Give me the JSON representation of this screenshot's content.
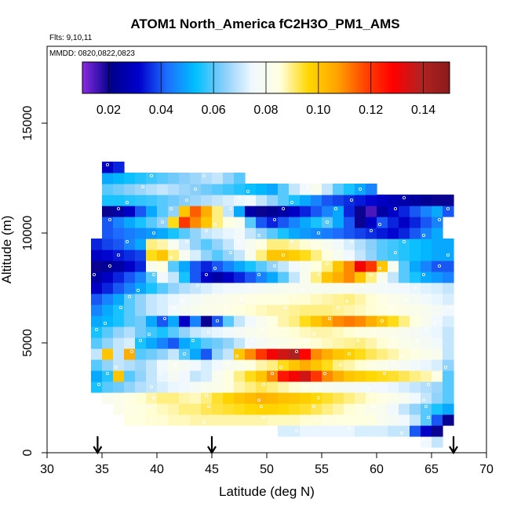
{
  "chart_data": {
    "type": "heatmap",
    "title": "ATOM1 North_America fC2H3O_PM1_AMS",
    "flights_label": "Flts: 9,10,11",
    "dates_label": "MMDD: 0820,0822,0823",
    "xlabel": "Latitude (deg N)",
    "ylabel": "Altitude (m)",
    "xlim": [
      30,
      70
    ],
    "ylim": [
      0,
      18500
    ],
    "x_ticks": [
      30,
      35,
      40,
      45,
      50,
      55,
      60,
      65,
      70
    ],
    "y_ticks": [
      0,
      5000,
      10000,
      15000
    ],
    "colorbar": {
      "min": 0.01,
      "max": 0.15,
      "ticks": [
        0.02,
        0.04,
        0.06,
        0.08,
        0.1,
        0.12,
        0.14
      ],
      "tick_labels": [
        "0.02",
        "0.04",
        "0.06",
        "0.08",
        "0.10",
        "0.12",
        "0.14"
      ],
      "colors": [
        "#8a2be2",
        "#00008b",
        "#0000cd",
        "#1e6fff",
        "#00bfff",
        "#87cefa",
        "#f0f8ff",
        "#ffffe0",
        "#ffd700",
        "#ffa500",
        "#ff4500",
        "#ff0000",
        "#b22222",
        "#8b1a1a"
      ]
    },
    "arrows_latitude": [
      34.6,
      45.0,
      67.0
    ],
    "cell_width_deg": 1.0,
    "cell_height_m": 500,
    "rows": [
      {
        "alt": 500,
        "lat_min": 64,
        "lat_max": 66,
        "values": [
          0.075,
          0.07
        ]
      },
      {
        "alt": 1000,
        "lat_min": 51,
        "lat_max": 66,
        "values": [
          0.072,
          0.072,
          0.074,
          0.074,
          0.074,
          0.074,
          0.074,
          0.072,
          0.072,
          0.072,
          0.07,
          0.07,
          0.04,
          0.03,
          0.02
        ]
      },
      {
        "alt": 1500,
        "lat_min": 37,
        "lat_max": 66,
        "values": [
          0.085,
          0.085,
          0.086,
          0.086,
          0.087,
          0.087,
          0.088,
          0.088,
          0.088,
          0.088,
          0.088,
          0.088,
          0.088,
          0.087,
          0.087,
          0.087,
          0.086,
          0.086,
          0.085,
          0.085,
          0.085,
          0.085,
          0.085,
          0.08,
          0.078,
          0.075,
          0.07,
          0.06,
          0.04,
          0.02
        ]
      },
      {
        "alt": 2000,
        "lat_min": 36,
        "lat_max": 67,
        "values": [
          0.082,
          0.084,
          0.085,
          0.086,
          0.087,
          0.088,
          0.09,
          0.09,
          0.092,
          0.093,
          0.094,
          0.095,
          0.096,
          0.097,
          0.097,
          0.096,
          0.095,
          0.094,
          0.092,
          0.09,
          0.088,
          0.086,
          0.085,
          0.082,
          0.08,
          0.075,
          0.07,
          0.065,
          0.06,
          0.055,
          0.05
        ]
      },
      {
        "alt": 2500,
        "lat_min": 35,
        "lat_max": 67,
        "values": [
          0.08,
          0.082,
          0.084,
          0.086,
          0.088,
          0.09,
          0.09,
          0.088,
          0.087,
          0.09,
          0.094,
          0.097,
          0.1,
          0.102,
          0.104,
          0.103,
          0.101,
          0.1,
          0.098,
          0.096,
          0.094,
          0.092,
          0.09,
          0.088,
          0.086,
          0.084,
          0.082,
          0.08,
          0.075,
          0.07,
          0.065,
          0.06
        ]
      },
      {
        "alt": 3000,
        "lat_min": 34,
        "lat_max": 67,
        "values": [
          0.055,
          0.06,
          0.062,
          0.065,
          0.068,
          0.07,
          0.072,
          0.074,
          0.075,
          0.078,
          0.08,
          0.082,
          0.085,
          0.088,
          0.09,
          0.092,
          0.09,
          0.088,
          0.086,
          0.084,
          0.082,
          0.08,
          0.079,
          0.078,
          0.077,
          0.076,
          0.075,
          0.074,
          0.072,
          0.07,
          0.068,
          0.066,
          0.06
        ]
      },
      {
        "alt": 3500,
        "lat_min": 34,
        "lat_max": 67,
        "values": [
          0.05,
          0.056,
          0.1,
          0.06,
          0.065,
          0.07,
          0.074,
          0.078,
          0.075,
          0.07,
          0.072,
          0.08,
          0.085,
          0.09,
          0.095,
          0.1,
          0.11,
          0.125,
          0.13,
          0.135,
          0.12,
          0.11,
          0.105,
          0.1,
          0.098,
          0.096,
          0.095,
          0.094,
          0.092,
          0.09,
          0.088,
          0.085,
          0.06
        ]
      },
      {
        "alt": 4000,
        "lat_min": 34,
        "lat_max": 67,
        "values": [
          0.06,
          0.065,
          0.07,
          0.068,
          0.066,
          0.07,
          0.075,
          0.08,
          0.078,
          0.075,
          0.072,
          0.075,
          0.08,
          0.082,
          0.085,
          0.088,
          0.09,
          0.095,
          0.1,
          0.105,
          0.1,
          0.095,
          0.09,
          0.088,
          0.086,
          0.084,
          0.082,
          0.08,
          0.078,
          0.076,
          0.074,
          0.072,
          0.065
        ]
      },
      {
        "alt": 4500,
        "lat_min": 34,
        "lat_max": 67,
        "values": [
          0.07,
          0.1,
          0.07,
          0.105,
          0.06,
          0.062,
          0.065,
          0.07,
          0.06,
          0.05,
          0.04,
          0.065,
          0.07,
          0.1,
          0.11,
          0.12,
          0.13,
          0.135,
          0.14,
          0.128,
          0.11,
          0.105,
          0.1,
          0.098,
          0.095,
          0.092,
          0.09,
          0.088,
          0.086,
          0.084,
          0.082,
          0.08,
          0.07
        ]
      },
      {
        "alt": 5000,
        "lat_min": 34,
        "lat_max": 67,
        "values": [
          0.06,
          0.065,
          0.07,
          0.072,
          0.055,
          0.05,
          0.045,
          0.04,
          0.05,
          0.055,
          0.06,
          0.062,
          0.065,
          0.07,
          0.075,
          0.078,
          0.08,
          0.082,
          0.084,
          0.085,
          0.086,
          0.087,
          0.088,
          0.089,
          0.09,
          0.088,
          0.086,
          0.084,
          0.082,
          0.08,
          0.078,
          0.076,
          0.07
        ]
      },
      {
        "alt": 5500,
        "lat_min": 34,
        "lat_max": 67,
        "values": [
          0.055,
          0.06,
          0.065,
          0.068,
          0.062,
          0.058,
          0.055,
          0.06,
          0.065,
          0.07,
          0.072,
          0.074,
          0.076,
          0.078,
          0.08,
          0.082,
          0.084,
          0.085,
          0.086,
          0.087,
          0.088,
          0.088,
          0.087,
          0.086,
          0.085,
          0.084,
          0.083,
          0.082,
          0.08,
          0.078,
          0.076,
          0.074,
          0.07
        ]
      },
      {
        "alt": 6000,
        "lat_min": 34,
        "lat_max": 67,
        "values": [
          0.05,
          0.052,
          0.055,
          0.06,
          0.062,
          0.05,
          0.04,
          0.05,
          0.03,
          0.045,
          0.02,
          0.04,
          0.06,
          0.07,
          0.075,
          0.08,
          0.085,
          0.088,
          0.09,
          0.095,
          0.1,
          0.105,
          0.11,
          0.112,
          0.11,
          0.105,
          0.1,
          0.095,
          0.09,
          0.085,
          0.08,
          0.075,
          0.072
        ]
      },
      {
        "alt": 6500,
        "lat_min": 34,
        "lat_max": 67,
        "values": [
          0.045,
          0.05,
          0.055,
          0.06,
          0.065,
          0.07,
          0.072,
          0.075,
          0.078,
          0.08,
          0.082,
          0.083,
          0.084,
          0.085,
          0.086,
          0.087,
          0.088,
          0.088,
          0.089,
          0.09,
          0.09,
          0.09,
          0.089,
          0.088,
          0.087,
          0.086,
          0.085,
          0.084,
          0.083,
          0.082,
          0.08,
          0.078,
          0.075
        ]
      },
      {
        "alt": 7000,
        "lat_min": 34,
        "lat_max": 67,
        "values": [
          0.04,
          0.045,
          0.05,
          0.06,
          0.065,
          0.07,
          0.072,
          0.074,
          0.076,
          0.078,
          0.08,
          0.081,
          0.082,
          0.083,
          0.084,
          0.085,
          0.085,
          0.085,
          0.086,
          0.086,
          0.087,
          0.088,
          0.089,
          0.09,
          0.088,
          0.086,
          0.084,
          0.082,
          0.08,
          0.078,
          0.076,
          0.074,
          0.072
        ]
      },
      {
        "alt": 7500,
        "lat_min": 34,
        "lat_max": 67,
        "values": [
          0.03,
          0.035,
          0.04,
          0.045,
          0.05,
          0.055,
          0.06,
          0.065,
          0.068,
          0.07,
          0.072,
          0.074,
          0.075,
          0.076,
          0.077,
          0.078,
          0.079,
          0.08,
          0.08,
          0.08,
          0.08,
          0.08,
          0.08,
          0.08,
          0.079,
          0.078,
          0.077,
          0.076,
          0.075,
          0.074,
          0.073,
          0.072,
          0.07
        ]
      },
      {
        "alt": 8000,
        "lat_min": 34,
        "lat_max": 67,
        "values": [
          0.025,
          0.03,
          0.035,
          0.04,
          0.045,
          0.06,
          0.075,
          0.07,
          0.055,
          0.04,
          0.03,
          0.025,
          0.03,
          0.035,
          0.04,
          0.045,
          0.05,
          0.06,
          0.07,
          0.08,
          0.09,
          0.1,
          0.105,
          0.11,
          0.1,
          0.09,
          0.08,
          0.07,
          0.06,
          0.055,
          0.05,
          0.048,
          0.045
        ]
      },
      {
        "alt": 8500,
        "lat_min": 34,
        "lat_max": 67,
        "values": [
          0.02,
          0.022,
          0.025,
          0.03,
          0.035,
          0.08,
          0.085,
          0.06,
          0.05,
          0.04,
          0.035,
          0.04,
          0.045,
          0.05,
          0.055,
          0.06,
          0.065,
          0.07,
          0.075,
          0.08,
          0.085,
          0.09,
          0.1,
          0.11,
          0.13,
          0.12,
          0.1,
          0.08,
          0.06,
          0.05,
          0.045,
          0.04,
          0.04
        ]
      },
      {
        "alt": 9000,
        "lat_min": 34,
        "lat_max": 67,
        "values": [
          0.03,
          0.032,
          0.034,
          0.036,
          0.038,
          0.095,
          0.1,
          0.09,
          0.08,
          0.072,
          0.065,
          0.06,
          0.065,
          0.07,
          0.08,
          0.09,
          0.1,
          0.1,
          0.098,
          0.095,
          0.09,
          0.085,
          0.08,
          0.075,
          0.07,
          0.065,
          0.06,
          0.058,
          0.056,
          0.054,
          0.052,
          0.05,
          0.05
        ]
      },
      {
        "alt": 9500,
        "lat_min": 34,
        "lat_max": 67,
        "values": [
          0.035,
          0.038,
          0.04,
          0.045,
          0.05,
          0.09,
          0.088,
          0.08,
          0.072,
          0.065,
          0.06,
          0.065,
          0.07,
          0.075,
          0.08,
          0.085,
          0.09,
          0.09,
          0.088,
          0.086,
          0.084,
          0.08,
          0.076,
          0.072,
          0.068,
          0.064,
          0.06,
          0.058,
          0.056,
          0.054,
          0.052,
          0.05,
          0.05
        ]
      },
      {
        "alt": 10000,
        "lat_min": 35,
        "lat_max": 66,
        "values": [
          0.04,
          0.042,
          0.044,
          0.046,
          0.048,
          0.05,
          0.055,
          0.06,
          0.065,
          0.07,
          0.072,
          0.074,
          0.076,
          0.07,
          0.065,
          0.06,
          0.055,
          0.05,
          0.048,
          0.046,
          0.044,
          0.042,
          0.04,
          0.038,
          0.036,
          0.034,
          0.032,
          0.035,
          0.04,
          0.045,
          0.05
        ]
      },
      {
        "alt": 10500,
        "lat_min": 35,
        "lat_max": 66,
        "values": [
          0.04,
          0.045,
          0.05,
          0.055,
          0.06,
          0.065,
          0.095,
          0.12,
          0.11,
          0.1,
          0.09,
          0.085,
          0.08,
          0.06,
          0.04,
          0.035,
          0.04,
          0.045,
          0.05,
          0.055,
          0.06,
          0.05,
          0.04,
          0.02,
          0.03,
          0.04,
          0.035,
          0.03,
          0.035,
          0.04,
          0.045
        ]
      },
      {
        "alt": 11000,
        "lat_min": 35,
        "lat_max": 67,
        "values": [
          0.02,
          0.025,
          0.03,
          0.04,
          0.05,
          0.06,
          0.065,
          0.1,
          0.115,
          0.105,
          0.09,
          0.07,
          0.05,
          0.025,
          0.02,
          0.022,
          0.025,
          0.03,
          0.035,
          0.04,
          0.045,
          0.05,
          0.035,
          0.02,
          0.015,
          0.025,
          0.03,
          0.035,
          0.04,
          0.045,
          0.05,
          0.04
        ]
      },
      {
        "alt": 11500,
        "lat_min": 35,
        "lat_max": 67,
        "values": [
          0.055,
          0.055,
          0.056,
          0.057,
          0.058,
          0.06,
          0.062,
          0.064,
          0.066,
          0.068,
          0.07,
          0.072,
          0.074,
          0.076,
          0.07,
          0.065,
          0.06,
          0.055,
          0.05,
          0.045,
          0.04,
          0.038,
          0.036,
          0.034,
          0.032,
          0.03,
          0.028,
          0.026,
          0.024,
          0.022,
          0.02,
          0.02
        ]
      },
      {
        "alt": 12000,
        "lat_min": 35,
        "lat_max": 60,
        "values": [
          0.06,
          0.062,
          0.064,
          0.066,
          0.068,
          0.07,
          0.068,
          0.066,
          0.064,
          0.062,
          0.06,
          0.058,
          0.056,
          0.054,
          0.052,
          0.05,
          0.06,
          0.07,
          0.075,
          0.08,
          0.07,
          0.06,
          0.055,
          0.05,
          0.045
        ]
      },
      {
        "alt": 12500,
        "lat_min": 35,
        "lat_max": 48,
        "values": [
          0.05,
          0.052,
          0.054,
          0.056,
          0.058,
          0.06,
          0.062,
          0.064,
          0.066,
          0.068,
          0.07,
          0.065,
          0.06
        ]
      },
      {
        "alt": 13000,
        "lat_min": 35,
        "lat_max": 37,
        "values": [
          0.03,
          0.035
        ]
      }
    ]
  }
}
